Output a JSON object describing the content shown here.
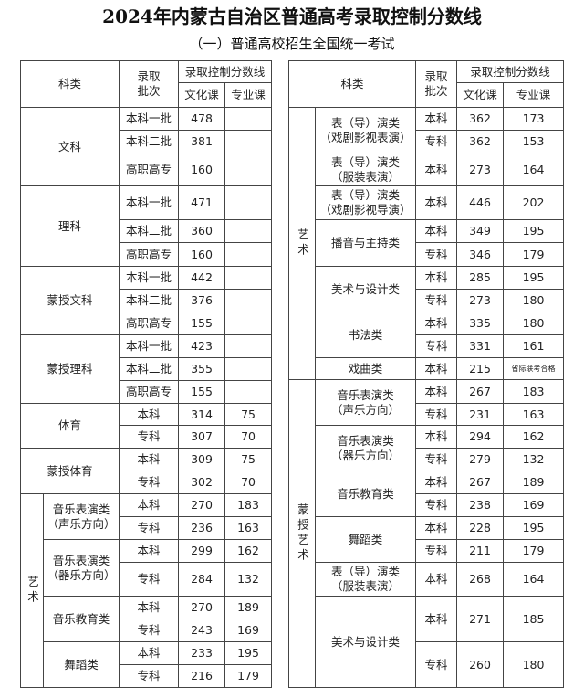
{
  "title": "2024年内蒙古自治区普通高考录取控制分数线",
  "subtitle": "（一）普通高校招生全国统一考试",
  "header": {
    "category": "科类",
    "batch": "录取\n批次",
    "score_line": "录取控制分数线",
    "culture": "文化课",
    "major": "专业课"
  },
  "left": {
    "groups": [
      {
        "name": "文科",
        "rows": [
          {
            "batch": "本科一批",
            "culture": "478",
            "major": ""
          },
          {
            "batch": "本科二批",
            "culture": "381",
            "major": ""
          },
          {
            "batch": "高职高专",
            "culture": "160",
            "major": ""
          }
        ]
      },
      {
        "name": "理科",
        "rows": [
          {
            "batch": "本科一批",
            "culture": "471",
            "major": ""
          },
          {
            "batch": "本科二批",
            "culture": "360",
            "major": ""
          },
          {
            "batch": "高职高专",
            "culture": "160",
            "major": ""
          }
        ]
      },
      {
        "name": "蒙授文科",
        "rows": [
          {
            "batch": "本科一批",
            "culture": "442",
            "major": ""
          },
          {
            "batch": "本科二批",
            "culture": "376",
            "major": ""
          },
          {
            "batch": "高职高专",
            "culture": "155",
            "major": ""
          }
        ]
      },
      {
        "name": "蒙授理科",
        "rows": [
          {
            "batch": "本科一批",
            "culture": "423",
            "major": ""
          },
          {
            "batch": "本科二批",
            "culture": "355",
            "major": ""
          },
          {
            "batch": "高职高专",
            "culture": "155",
            "major": ""
          }
        ]
      },
      {
        "name": "体育",
        "rows": [
          {
            "batch": "本科",
            "culture": "314",
            "major": "75"
          },
          {
            "batch": "专科",
            "culture": "307",
            "major": "70"
          }
        ]
      },
      {
        "name": "蒙授体育",
        "rows": [
          {
            "batch": "本科",
            "culture": "309",
            "major": "75"
          },
          {
            "batch": "专科",
            "culture": "302",
            "major": "70"
          }
        ]
      },
      {
        "name": "艺术",
        "subgroups": [
          {
            "name": "音乐表演类\n（声乐方向）",
            "rows": [
              {
                "batch": "本科",
                "culture": "270",
                "major": "183"
              },
              {
                "batch": "专科",
                "culture": "236",
                "major": "163"
              }
            ]
          },
          {
            "name": "音乐表演类\n（器乐方向）",
            "rows": [
              {
                "batch": "本科",
                "culture": "299",
                "major": "162"
              },
              {
                "batch": "专科",
                "culture": "284",
                "major": "132"
              }
            ]
          },
          {
            "name": "音乐教育类",
            "rows": [
              {
                "batch": "本科",
                "culture": "270",
                "major": "189"
              },
              {
                "batch": "专科",
                "culture": "243",
                "major": "169"
              }
            ]
          },
          {
            "name": "舞蹈类",
            "rows": [
              {
                "batch": "本科",
                "culture": "233",
                "major": "195"
              },
              {
                "batch": "专科",
                "culture": "216",
                "major": "179"
              }
            ]
          }
        ]
      }
    ]
  },
  "right": {
    "groups": [
      {
        "name": "艺术",
        "subgroups": [
          {
            "name": "表（导）演类\n（戏剧影视表演）",
            "rows": [
              {
                "batch": "本科",
                "culture": "362",
                "major": "173"
              },
              {
                "batch": "专科",
                "culture": "362",
                "major": "153"
              }
            ]
          },
          {
            "name": "表（导）演类\n（服装表演）",
            "rows": [
              {
                "batch": "本科",
                "culture": "273",
                "major": "164"
              }
            ]
          },
          {
            "name": "表（导）演类\n（戏剧影视导演）",
            "rows": [
              {
                "batch": "本科",
                "culture": "446",
                "major": "202"
              }
            ]
          },
          {
            "name": "播音与主持类",
            "rows": [
              {
                "batch": "本科",
                "culture": "349",
                "major": "195"
              },
              {
                "batch": "专科",
                "culture": "346",
                "major": "179"
              }
            ]
          },
          {
            "name": "美术与设计类",
            "rows": [
              {
                "batch": "本科",
                "culture": "285",
                "major": "195"
              },
              {
                "batch": "专科",
                "culture": "273",
                "major": "180"
              }
            ]
          },
          {
            "name": "书法类",
            "rows": [
              {
                "batch": "本科",
                "culture": "335",
                "major": "180"
              },
              {
                "batch": "专科",
                "culture": "331",
                "major": "161"
              }
            ]
          },
          {
            "name": "戏曲类",
            "rows": [
              {
                "batch": "本科",
                "culture": "215",
                "major": "省际联考合格"
              }
            ]
          }
        ]
      },
      {
        "name": "蒙授艺术",
        "subgroups": [
          {
            "name": "音乐表演类\n（声乐方向）",
            "rows": [
              {
                "batch": "本科",
                "culture": "267",
                "major": "183"
              },
              {
                "batch": "专科",
                "culture": "231",
                "major": "163"
              }
            ]
          },
          {
            "name": "音乐表演类\n（器乐方向）",
            "rows": [
              {
                "batch": "本科",
                "culture": "294",
                "major": "162"
              },
              {
                "batch": "专科",
                "culture": "279",
                "major": "132"
              }
            ]
          },
          {
            "name": "音乐教育类",
            "rows": [
              {
                "batch": "本科",
                "culture": "267",
                "major": "189"
              },
              {
                "batch": "专科",
                "culture": "238",
                "major": "169"
              }
            ]
          },
          {
            "name": "舞蹈类",
            "rows": [
              {
                "batch": "本科",
                "culture": "228",
                "major": "195"
              },
              {
                "batch": "专科",
                "culture": "211",
                "major": "179"
              }
            ]
          },
          {
            "name": "表（导）演类\n（服装表演）",
            "rows": [
              {
                "batch": "本科",
                "culture": "268",
                "major": "164"
              }
            ]
          },
          {
            "name": "美术与设计类",
            "rows": [
              {
                "batch": "本科",
                "culture": "271",
                "major": "185"
              },
              {
                "batch": "专科",
                "culture": "260",
                "major": "180"
              }
            ]
          }
        ]
      }
    ]
  }
}
